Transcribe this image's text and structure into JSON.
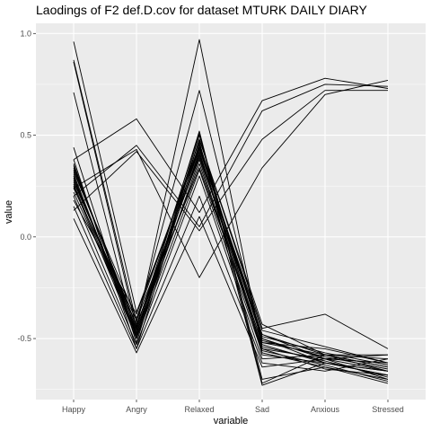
{
  "chart_data": {
    "type": "line",
    "title": "Laodings of F2 def.D.cov for dataset MTURK DAILY DIARY",
    "xlabel": "variable",
    "ylabel": "value",
    "categories": [
      "Happy",
      "Angry",
      "Relaxed",
      "Sad",
      "Anxious",
      "Stressed"
    ],
    "ylim": [
      -0.8,
      1.05
    ],
    "yticks": [
      -0.5,
      0.0,
      0.5,
      1.0
    ],
    "ytick_labels": [
      "-0.5",
      "0.0",
      "0.5",
      "1.0"
    ],
    "grid": true,
    "panel_background": "#ebebeb",
    "line_color": "#000000",
    "series": [
      {
        "values": [
          0.96,
          -0.37,
          0.44,
          -0.48,
          -0.58,
          -0.64
        ]
      },
      {
        "values": [
          0.87,
          -0.42,
          0.72,
          -0.52,
          -0.55,
          -0.62
        ]
      },
      {
        "values": [
          0.86,
          -0.45,
          0.97,
          -0.55,
          -0.6,
          -0.66
        ]
      },
      {
        "values": [
          0.71,
          -0.5,
          0.5,
          -0.58,
          -0.62,
          -0.68
        ]
      },
      {
        "values": [
          0.44,
          -0.52,
          0.48,
          -0.45,
          -0.38,
          -0.55
        ]
      },
      {
        "values": [
          0.38,
          -0.55,
          0.46,
          -0.5,
          -0.6,
          -0.7
        ]
      },
      {
        "values": [
          0.36,
          -0.48,
          0.42,
          -0.53,
          -0.62,
          -0.68
        ]
      },
      {
        "values": [
          0.35,
          -0.46,
          0.44,
          -0.51,
          -0.59,
          -0.65
        ]
      },
      {
        "values": [
          0.33,
          -0.44,
          0.4,
          -0.49,
          -0.57,
          -0.63
        ]
      },
      {
        "values": [
          0.31,
          -0.49,
          0.38,
          -0.56,
          -0.63,
          -0.71
        ]
      },
      {
        "values": [
          0.29,
          -0.47,
          0.36,
          -0.54,
          -0.61,
          -0.69
        ]
      },
      {
        "values": [
          0.27,
          -0.43,
          0.34,
          -0.52,
          -0.58,
          -0.66
        ]
      },
      {
        "values": [
          0.25,
          -0.5,
          0.33,
          -0.57,
          -0.64,
          -0.7
        ]
      },
      {
        "values": [
          0.24,
          -0.41,
          0.39,
          -0.48,
          -0.6,
          -0.62
        ]
      },
      {
        "values": [
          0.22,
          -0.46,
          0.41,
          -0.55,
          -0.65,
          -0.68
        ]
      },
      {
        "values": [
          0.2,
          -0.53,
          0.3,
          -0.6,
          -0.58,
          -0.64
        ]
      },
      {
        "values": [
          0.18,
          -0.38,
          0.45,
          -0.5,
          -0.62,
          -0.66
        ]
      },
      {
        "values": [
          0.28,
          -0.45,
          0.51,
          -0.72,
          -0.58,
          -0.6
        ]
      },
      {
        "values": [
          0.32,
          -0.4,
          0.47,
          -0.73,
          -0.62,
          -0.66
        ]
      },
      {
        "values": [
          0.26,
          -0.48,
          0.52,
          -0.7,
          -0.64,
          -0.72
        ]
      },
      {
        "values": [
          0.3,
          -0.5,
          0.48,
          -0.43,
          -0.58,
          -0.58
        ]
      },
      {
        "values": [
          0.34,
          -0.44,
          0.43,
          -0.46,
          -0.54,
          -0.62
        ]
      },
      {
        "values": [
          0.38,
          0.58,
          0.12,
          0.67,
          0.78,
          0.73
        ]
      },
      {
        "values": [
          0.24,
          0.43,
          -0.2,
          0.34,
          0.7,
          0.77
        ]
      },
      {
        "values": [
          0.2,
          0.45,
          0.05,
          0.62,
          0.75,
          0.74
        ]
      },
      {
        "values": [
          0.13,
          0.42,
          0.03,
          0.48,
          0.72,
          0.72
        ]
      },
      {
        "values": [
          0.09,
          -0.57,
          0.1,
          -0.64,
          -0.6,
          -0.58
        ]
      },
      {
        "values": [
          0.15,
          -0.55,
          0.2,
          -0.62,
          -0.66,
          -0.6
        ]
      }
    ]
  }
}
